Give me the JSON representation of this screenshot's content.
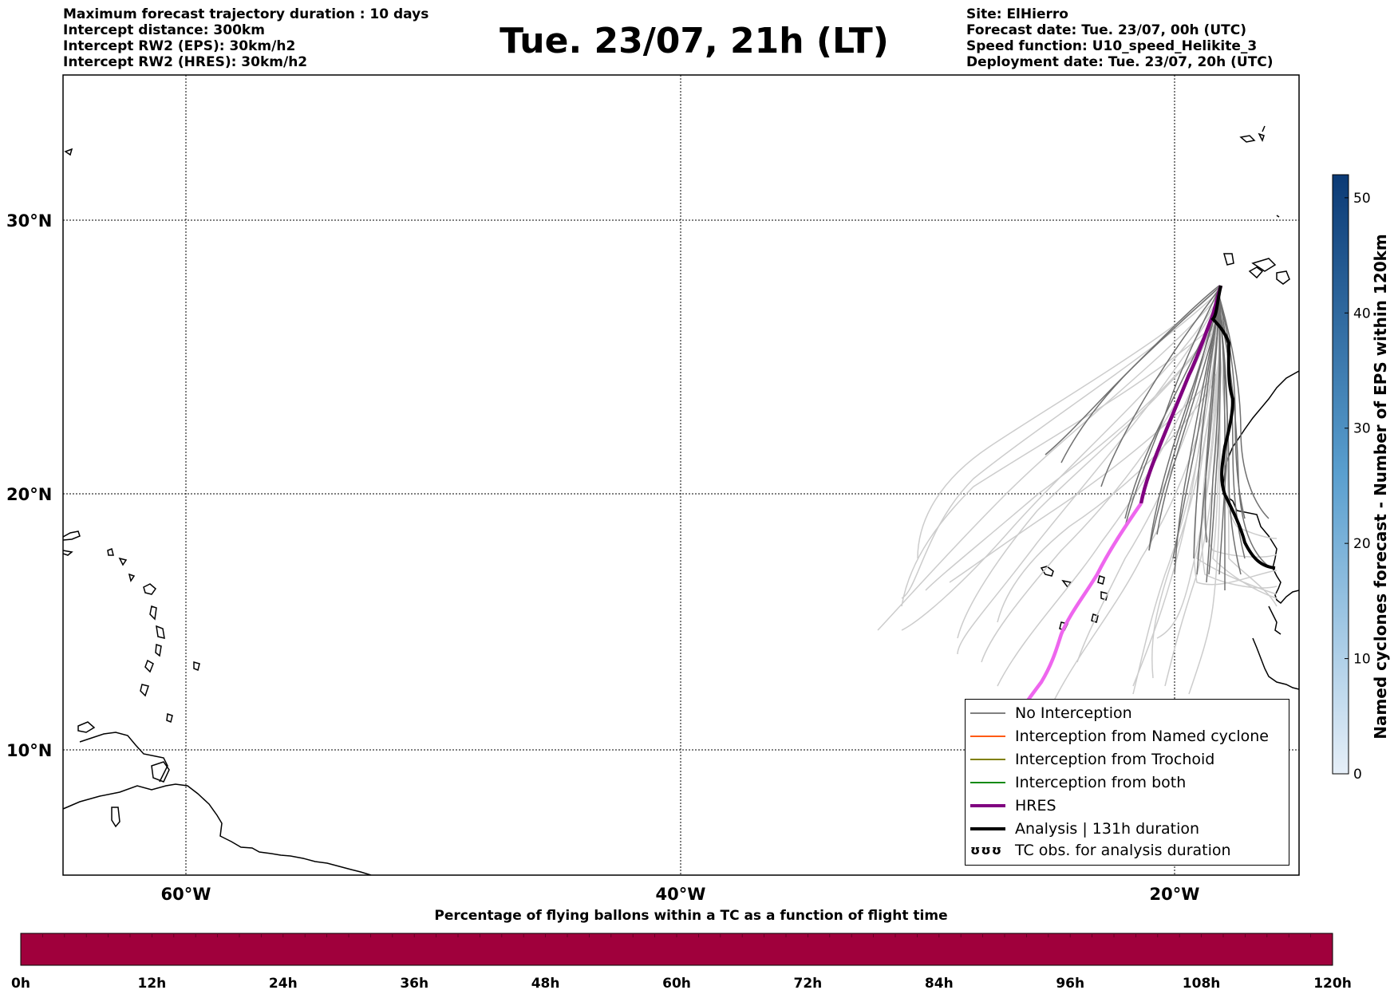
{
  "header": {
    "left_lines": [
      "Maximum forecast trajectory duration : 10 days",
      "Intercept distance: 300km",
      "Intercept RW2 (EPS):  30km/h2",
      "Intercept RW2 (HRES): 30km/h2"
    ],
    "title": "Tue. 23/07, 21h (LT)",
    "right_lines": [
      "Site: ElHierro",
      "Forecast date: Tue. 23/07, 00h (UTC)",
      "Speed function: U10_speed_Helikite_3",
      "Deployment date: Tue. 23/07, 20h (UTC)"
    ]
  },
  "map": {
    "lat_labels": [
      "30°N",
      "20°N",
      "10°N"
    ],
    "lon_labels": [
      "60°W",
      "40°W",
      "20°W"
    ],
    "gridlines": "dotted",
    "colors": {
      "eps_no_interception": "#707070",
      "eps_light": "#cccccc",
      "hres_early": "#800080",
      "hres_late": "#ee66ee",
      "analysis": "#000000",
      "coast": "#000000"
    }
  },
  "legend": {
    "items": [
      {
        "label": "No Interception",
        "color": "#808080",
        "width": 1.5
      },
      {
        "label": "Interception from Named cyclone",
        "color": "#ff5a14",
        "width": 1.5
      },
      {
        "label": "Interception from Trochoid",
        "color": "#808000",
        "width": 1.5
      },
      {
        "label": "Interception from both",
        "color": "#138a13",
        "width": 1.5
      },
      {
        "label": "HRES",
        "color": "#800080",
        "width": 4
      },
      {
        "label": "Analysis | 131h duration",
        "color": "#000000",
        "width": 4
      }
    ],
    "tc_obs": {
      "symbol": "ʊʊʊ",
      "label": "TC obs. for analysis duration"
    }
  },
  "colorbar": {
    "label": "Named cyclones forecast - Number of EPS within 120km",
    "ticks": [
      "0",
      "10",
      "20",
      "30",
      "40",
      "50"
    ],
    "min": 0,
    "max": 52,
    "color_low": "#e6eff8",
    "color_high": "#0b3a75"
  },
  "bottom_bar": {
    "title": "Percentage of flying ballons within a TC as a function of flight time",
    "ticks": [
      "0h",
      "12h",
      "24h",
      "36h",
      "48h",
      "60h",
      "72h",
      "84h",
      "96h",
      "108h",
      "120h"
    ],
    "fill_color": "#a0003c",
    "percent_values": [
      100,
      100,
      100,
      100,
      100,
      100,
      100,
      100,
      100,
      100
    ]
  }
}
